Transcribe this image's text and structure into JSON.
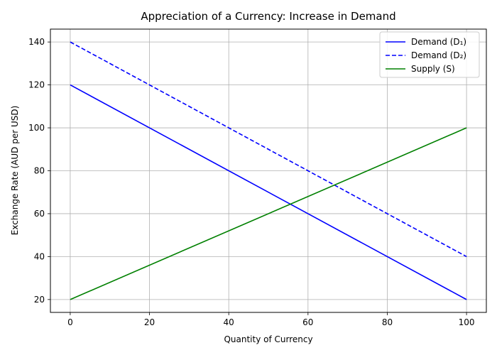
{
  "chart_data": {
    "type": "line",
    "title": "Appreciation of a Currency: Increase in Demand",
    "xlabel": "Quantity of Currency",
    "ylabel": "Exchange Rate (AUD per USD)",
    "xlim": [
      -5,
      105
    ],
    "ylim": [
      14,
      146
    ],
    "x_ticks": [
      0,
      20,
      40,
      60,
      80,
      100
    ],
    "y_ticks": [
      20,
      40,
      60,
      80,
      100,
      120,
      140
    ],
    "grid": true,
    "legend_position": "top-right",
    "series": [
      {
        "name": "Demand (D₁)",
        "color": "#0000ff",
        "dash": "solid",
        "x": [
          0,
          100
        ],
        "y": [
          120,
          20
        ]
      },
      {
        "name": "Demand (D₂)",
        "color": "#0000ff",
        "dash": "dashed",
        "x": [
          0,
          100
        ],
        "y": [
          140,
          40
        ]
      },
      {
        "name": "Supply (S)",
        "color": "#008000",
        "dash": "solid",
        "x": [
          0,
          100
        ],
        "y": [
          20,
          100
        ]
      }
    ]
  }
}
